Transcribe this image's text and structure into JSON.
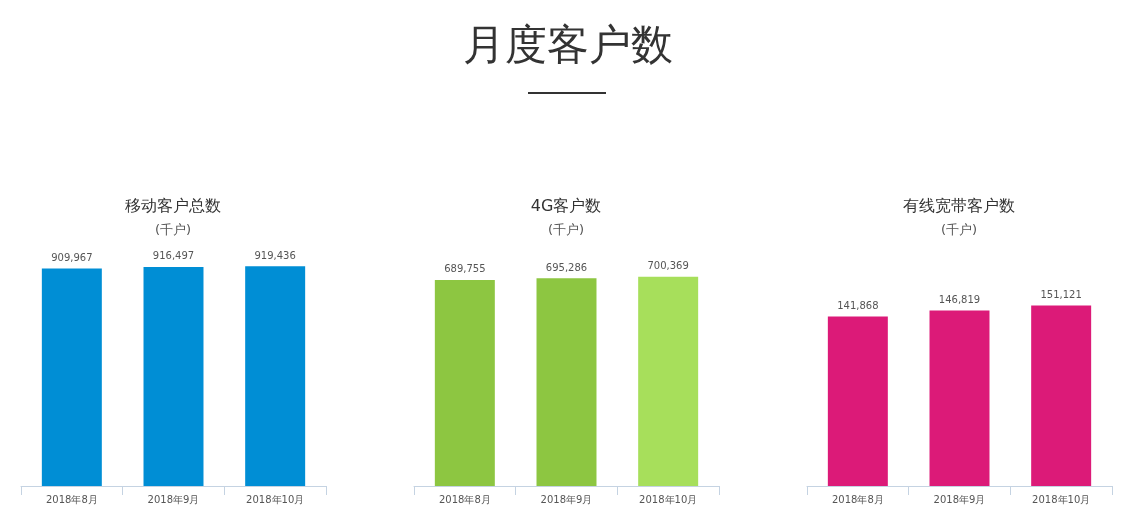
{
  "chart_data": [
    {
      "type": "other",
      "title": "月度客户数"
    },
    {
      "type": "bar",
      "title": "移动客户总数",
      "subtitle": "(千户)",
      "categories": [
        "2018年8月",
        "2018年9月",
        "2018年10月"
      ],
      "values": [
        909967,
        916497,
        919436
      ],
      "value_labels": [
        "909,967",
        "916,497",
        "919,436"
      ],
      "color": "#008ed5",
      "tick_labels": "x"
    },
    {
      "type": "bar",
      "title": "4G客户数",
      "subtitle": "(千户)",
      "categories": [
        "2018年8月",
        "2018年9月",
        "2018年10月"
      ],
      "values": [
        689755,
        695286,
        700369
      ],
      "value_labels": [
        "689,755",
        "695,286",
        "700,369"
      ],
      "colors": [
        "#8dc641",
        "#8dc641",
        "#a7df5b"
      ],
      "tick_labels": "x"
    },
    {
      "type": "bar",
      "title": "有线宽带客户数",
      "subtitle": "(千户)",
      "categories": [
        "2018年8月",
        "2018年9月",
        "2018年10月"
      ],
      "values": [
        141868,
        146819,
        151121
      ],
      "value_labels": [
        "141,868",
        "146,819",
        "151,121"
      ],
      "color": "#dc1a78",
      "tick_labels": "x"
    }
  ]
}
